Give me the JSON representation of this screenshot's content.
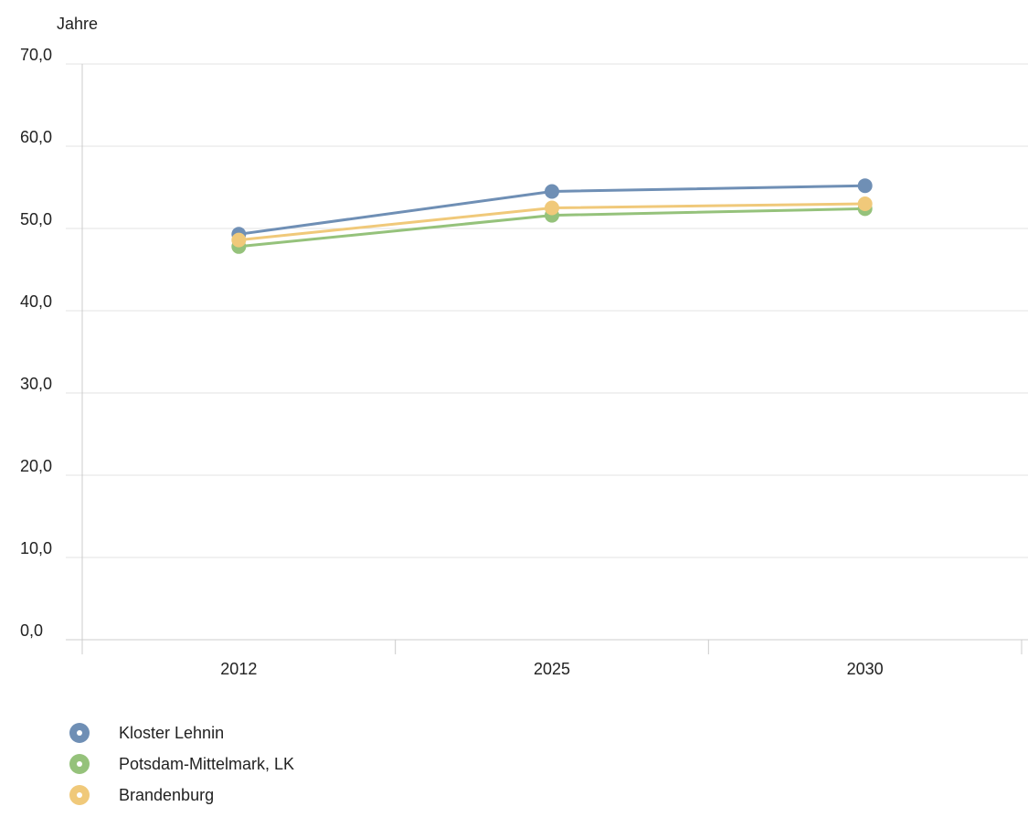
{
  "chart_data": {
    "type": "line",
    "ylabel": "Jahre",
    "xlabel": "",
    "categories": [
      "2012",
      "2025",
      "2030"
    ],
    "ylim": [
      0,
      70
    ],
    "yticks": [
      "0,0",
      "10,0",
      "20,0",
      "30,0",
      "40,0",
      "50,0",
      "60,0",
      "70,0"
    ],
    "grid": true,
    "legend_position": "bottom-left",
    "series": [
      {
        "name": "Kloster Lehnin",
        "values": [
          49.3,
          54.5,
          55.2
        ],
        "color": "#6f8fb5"
      },
      {
        "name": "Potsdam-Mittelmark, LK",
        "values": [
          47.8,
          51.6,
          52.4
        ],
        "color": "#95c27b"
      },
      {
        "name": "Brandenburg",
        "values": [
          48.6,
          52.5,
          53.0
        ],
        "color": "#f0c97a"
      }
    ]
  }
}
